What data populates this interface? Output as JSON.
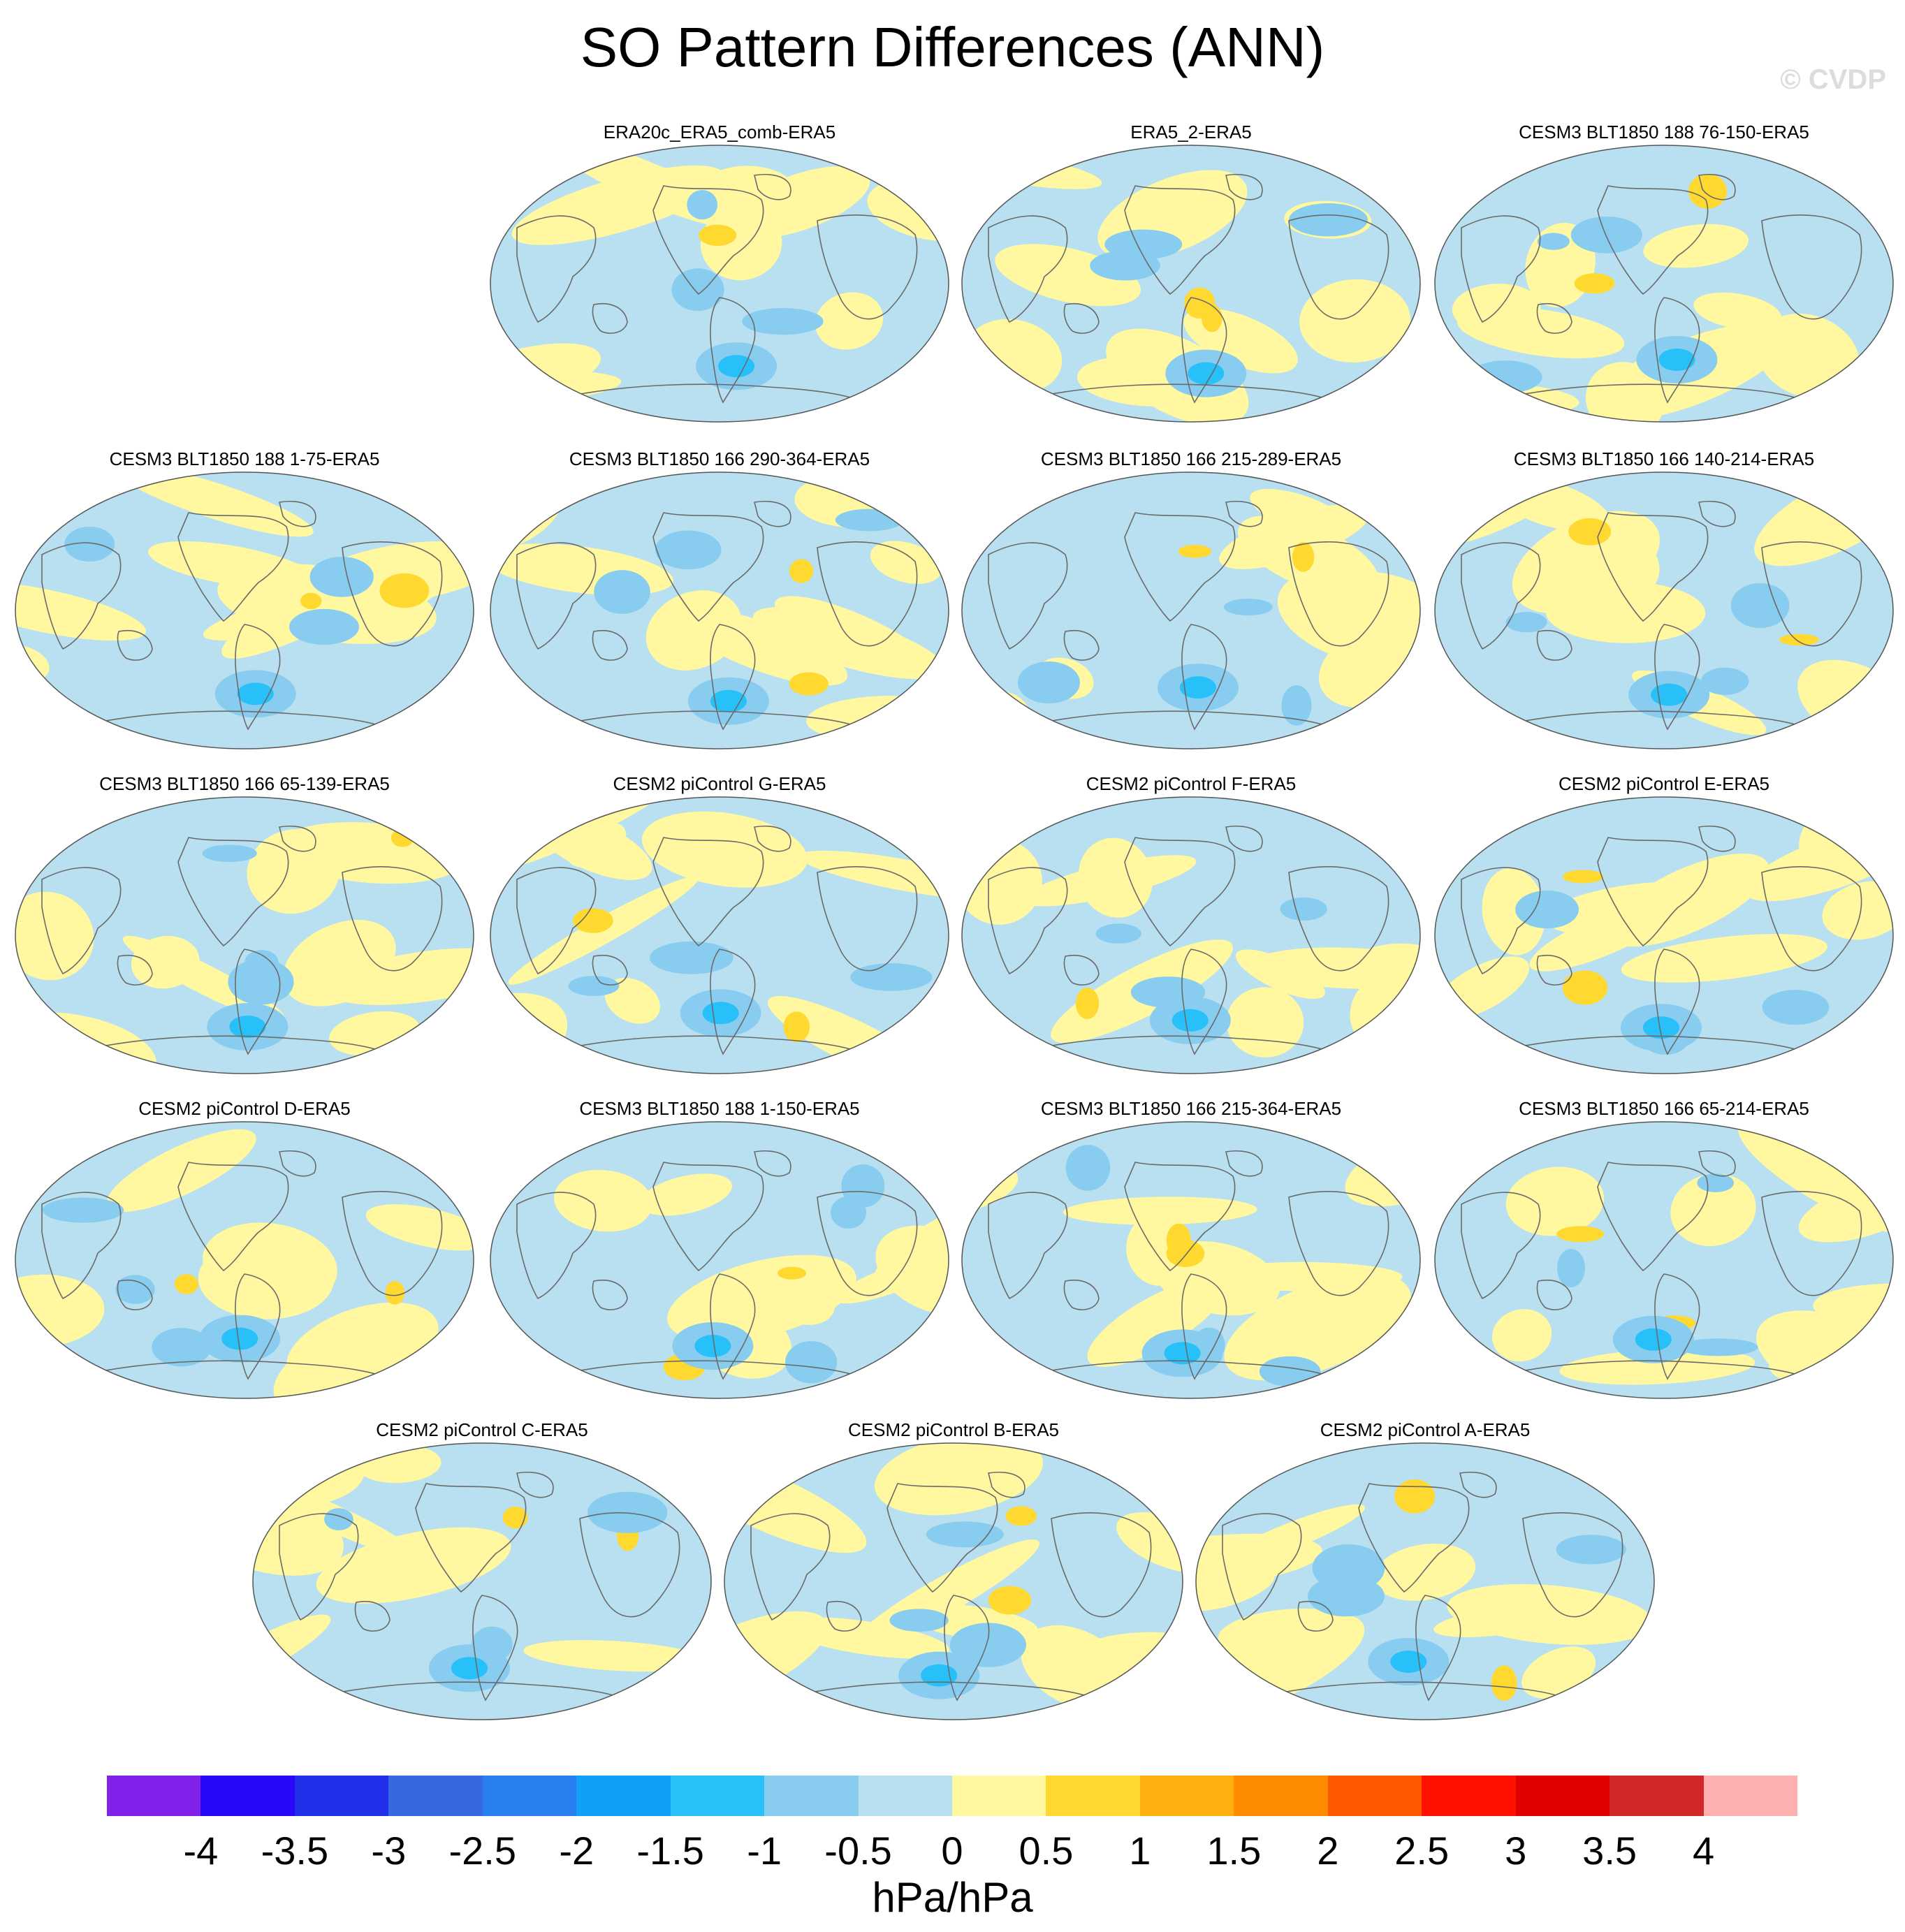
{
  "title": "SO Pattern Differences (ANN)",
  "watermark": "© CVDP",
  "panels": [
    {
      "title": "ERA20c_ERA5_comb-ERA5",
      "variant": 0
    },
    {
      "title": "ERA5_2-ERA5",
      "variant": 1
    },
    {
      "title": "CESM3 BLT1850 188 76-150-ERA5",
      "variant": 2
    },
    {
      "title": "CESM3 BLT1850 188 1-75-ERA5",
      "variant": 3
    },
    {
      "title": "CESM3 BLT1850 166 290-364-ERA5",
      "variant": 4
    },
    {
      "title": "CESM3 BLT1850 166 215-289-ERA5",
      "variant": 5
    },
    {
      "title": "CESM3 BLT1850 166 140-214-ERA5",
      "variant": 6
    },
    {
      "title": "CESM3 BLT1850 166 65-139-ERA5",
      "variant": 7
    },
    {
      "title": "CESM2 piControl G-ERA5",
      "variant": 8
    },
    {
      "title": "CESM2 piControl F-ERA5",
      "variant": 9
    },
    {
      "title": "CESM2 piControl E-ERA5",
      "variant": 10
    },
    {
      "title": "CESM2 piControl D-ERA5",
      "variant": 11
    },
    {
      "title": "CESM3 BLT1850 188 1-150-ERA5",
      "variant": 12
    },
    {
      "title": "CESM3 BLT1850 166 215-364-ERA5",
      "variant": 13
    },
    {
      "title": "CESM3 BLT1850 166 65-214-ERA5",
      "variant": 14
    },
    {
      "title": "CESM2 piControl C-ERA5",
      "variant": 15
    },
    {
      "title": "CESM2 piControl B-ERA5",
      "variant": 16
    },
    {
      "title": "CESM2 piControl A-ERA5",
      "variant": 17
    }
  ],
  "colorbar": {
    "units": "hPa/hPa",
    "labels": [
      "-4",
      "-3.5",
      "-3",
      "-2.5",
      "-2",
      "-1.5",
      "-1",
      "-0.5",
      "0",
      "0.5",
      "1",
      "1.5",
      "2",
      "2.5",
      "3",
      "3.5",
      "4"
    ],
    "colors": [
      "#8020e8",
      "#2808f8",
      "#2030e8",
      "#3868e0",
      "#2880f0",
      "#10a0f8",
      "#28c0f8",
      "#88ccf0",
      "#b8e0f0",
      "#fff8a0",
      "#ffd830",
      "#ffb010",
      "#ff8c00",
      "#ff5800",
      "#ff1000",
      "#e00000",
      "#d02828",
      "#ffb0b0"
    ]
  },
  "map_colors": {
    "negative_weak": "#b8e0f0",
    "negative_mod": "#88ccf0",
    "negative_strong": "#28c0f8",
    "positive_weak": "#fff8a0",
    "positive_mod": "#ffd830",
    "coast": "#6a6a6a"
  }
}
